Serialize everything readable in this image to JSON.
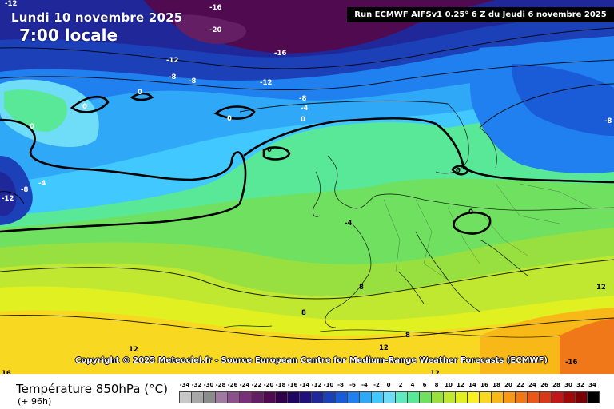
{
  "header": {
    "date_label": "Lundi 10 novembre 2025",
    "time_label": "7:00 locale",
    "run_info": "Run ECMWF AIFSv1 0.25° 6 Z du Jeudi 6 novembre 2025"
  },
  "copyright": "Copyright © 2025 Meteociel.fr - Source European Centre for Medium-Range Weather Forecasts (ECMWF)",
  "legend": {
    "title": "Température 850hPa (°C)",
    "subtitle": "(+ 96h)",
    "ticks": [
      -34,
      -32,
      -30,
      -28,
      -26,
      -24,
      -22,
      -20,
      -18,
      -16,
      -14,
      -12,
      -10,
      -8,
      -6,
      -4,
      -2,
      0,
      2,
      4,
      6,
      8,
      10,
      12,
      14,
      16,
      18,
      20,
      22,
      24,
      26,
      28,
      30,
      32,
      34
    ],
    "colors": [
      "#c8c8c8",
      "#a8a8a8",
      "#8c8c8c",
      "#a07aa0",
      "#8c508c",
      "#783078",
      "#641e64",
      "#500a50",
      "#30004a",
      "#1c0660",
      "#20107c",
      "#202899",
      "#1c40b8",
      "#1a5cd8",
      "#2080f0",
      "#30a8f8",
      "#40c8ff",
      "#70ddf8",
      "#60e8c0",
      "#58e898",
      "#70e060",
      "#98e040",
      "#c0e830",
      "#e0f020",
      "#f8f020",
      "#f8d820",
      "#f8b818",
      "#f89818",
      "#f07818",
      "#e85818",
      "#d83818",
      "#c01818",
      "#a00808",
      "#780000",
      "#000000"
    ]
  },
  "contour_labels": [
    "-12",
    "-16",
    "-20",
    "-16",
    "-12",
    "-8",
    "-8",
    "-12",
    "0",
    "0",
    "-8",
    "-4",
    "0",
    "0",
    "0",
    "-8",
    "-12",
    "-4",
    "0",
    "0",
    "-4",
    "-8",
    "8",
    "0",
    "8",
    "8",
    "12",
    "12",
    "12",
    "12",
    "16",
    "-16"
  ]
}
